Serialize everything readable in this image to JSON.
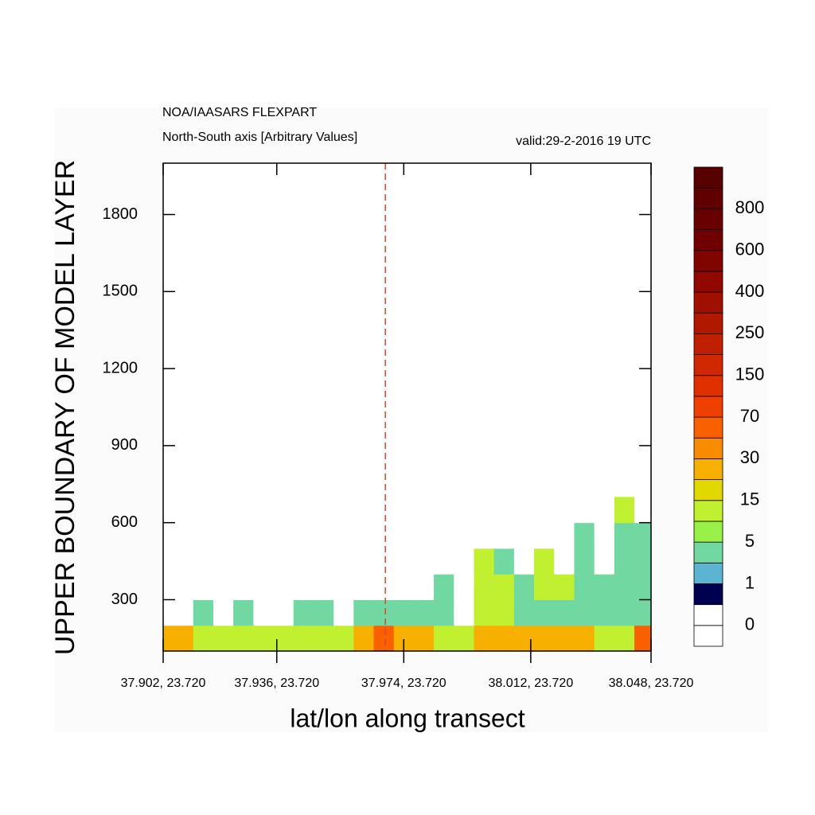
{
  "chart_data": {
    "type": "contour",
    "title": "NOA/IAASARS FLEXPART",
    "subtitle": "North-South axis [Arbitrary Values]",
    "valid_time": "valid:29-2-2016 19 UTC",
    "x_label": "lat/lon along transect",
    "y_label": "UPPER BOUNDARY OF MODEL LAYER",
    "xlim": [
      37.902,
      38.048
    ],
    "xticks": [
      {
        "value": 37.902,
        "label": "37.902, 23.720"
      },
      {
        "value": 37.936,
        "label": "37.936, 23.720"
      },
      {
        "value": 37.974,
        "label": "37.974, 23.720"
      },
      {
        "value": 38.012,
        "label": "38.012, 23.720"
      },
      {
        "value": 38.048,
        "label": "38.048, 23.720"
      }
    ],
    "ylim": [
      100,
      2000
    ],
    "yticks": [
      300,
      600,
      900,
      1200,
      1500,
      1800
    ],
    "reference_x": 37.9685,
    "reference_color": "#d84a2a",
    "x": [
      37.902,
      37.908,
      37.914,
      37.92,
      37.926,
      37.932,
      37.938,
      37.944,
      37.95,
      37.956,
      37.962,
      37.968,
      37.974,
      37.98,
      37.986,
      37.992,
      37.998,
      38.004,
      38.01,
      38.016,
      38.022,
      38.028,
      38.034,
      38.04,
      38.046
    ],
    "y": [
      150,
      250,
      350,
      450,
      550,
      650
    ],
    "z": [
      [
        20,
        20,
        8,
        6,
        8,
        6,
        5,
        10,
        12,
        10,
        25,
        40,
        20,
        15,
        10,
        8,
        20,
        25,
        20,
        15,
        25,
        15,
        10,
        6,
        30
      ],
      [
        0,
        0,
        1,
        0,
        3,
        0,
        0,
        3,
        3,
        0,
        3,
        4,
        3,
        3,
        4,
        0,
        6,
        5,
        3,
        4,
        3,
        4,
        2,
        3,
        3
      ],
      [
        0,
        0,
        0,
        0,
        0,
        0,
        0,
        0,
        0,
        0,
        0,
        0,
        0,
        0,
        3,
        0,
        8,
        6,
        3,
        10,
        5,
        3,
        2,
        1,
        3
      ],
      [
        0,
        0,
        0,
        0,
        0,
        0,
        0,
        0,
        0,
        0,
        0,
        0,
        0,
        0,
        0,
        0,
        5,
        2,
        0,
        5,
        0,
        3,
        0,
        2,
        1
      ],
      [
        0,
        0,
        0,
        0,
        0,
        0,
        0,
        0,
        0,
        0,
        0,
        0,
        0,
        0,
        0,
        0,
        0,
        0,
        0,
        0,
        0,
        2,
        0,
        4,
        1
      ],
      [
        0,
        0,
        0,
        0,
        0,
        0,
        0,
        0,
        0,
        0,
        0,
        0,
        0,
        0,
        0,
        0,
        0,
        0,
        0,
        0,
        0,
        0,
        0,
        5,
        0
      ]
    ],
    "colorbar": {
      "labels": [
        0,
        1,
        5,
        15,
        30,
        70,
        150,
        250,
        400,
        600,
        800
      ],
      "colors": [
        "#ffffff",
        "#ffffff",
        "#000050",
        "#5ab4d2",
        "#70d8a0",
        "#98f048",
        "#c0f030",
        "#e0d800",
        "#f8b000",
        "#f88c00",
        "#f86000",
        "#f04000",
        "#e03000",
        "#d02800",
        "#c02000",
        "#b01800",
        "#a01000",
        "#900800",
        "#800400",
        "#700000",
        "#680000",
        "#600000",
        "#580000"
      ]
    }
  }
}
